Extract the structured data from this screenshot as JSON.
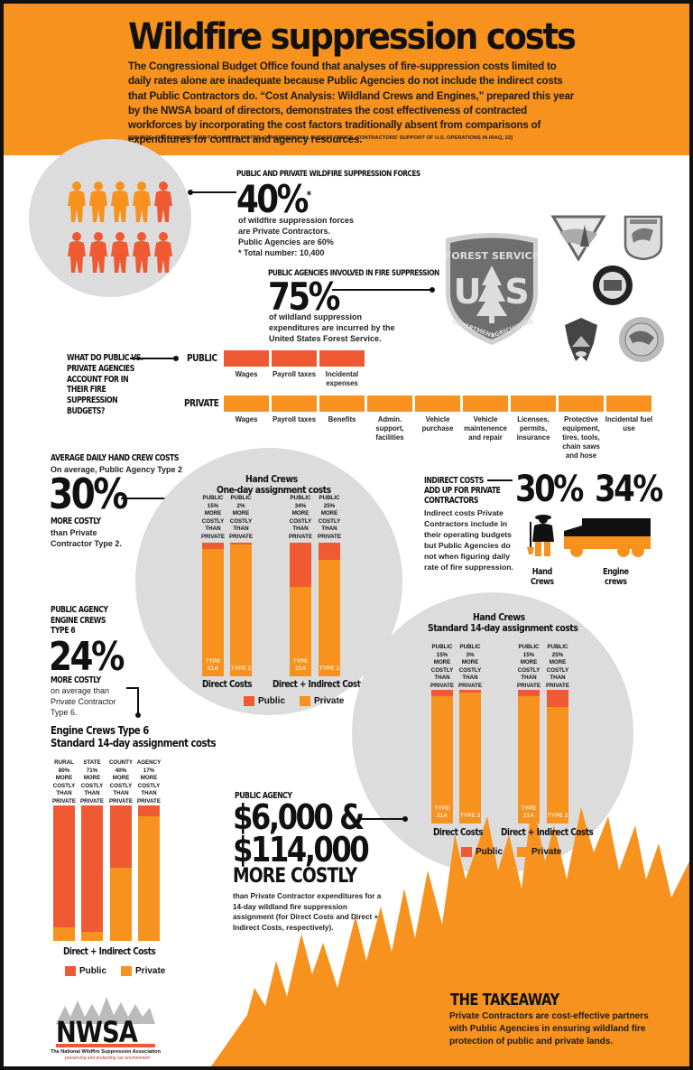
{
  "header": {
    "title": "Wildfire suppression costs",
    "intro": "The Congressional Budget Office found that analyses of fire-suppression costs limited to daily rates alone are inadequate because Public Agencies do not include the indirect costs that Public Contractors do. “Cost Analysis: Wildland Crews and Engines,” prepared this year by the NWSA board of directors, demonstrates the cost effectiveness of contracted workforces by incorporating the cost factors traditionally absent from comparisons of expenditures for contract and agency resources.",
    "source": "[SOURCE: THE CONGRESS OF THE UNITED STATES, CONGRESSIONAL BUDGET OFFICE, CONTRACTORS' SUPPORT OF U.S. OPERATIONS IN IRAQ, 22]"
  },
  "colors": {
    "orange": "#f7921e",
    "red_orange": "#f05a32",
    "gray_circle": "#dcdcdd",
    "black": "#111111"
  },
  "forces": {
    "heading": "PUBLIC AND PRIVATE WILDFIRE SUPPRESSION FORCES",
    "value": "40%",
    "asterisk": "*",
    "line1": "of wildfire suppression forces",
    "line2": "are Private Contractors.",
    "line3": "Public Agencies are 60%",
    "line4": "* Total number: 10,400",
    "icon": "firefighter-icon",
    "people": [
      {
        "type": "private"
      },
      {
        "type": "private"
      },
      {
        "type": "private"
      },
      {
        "type": "private"
      },
      {
        "type": "public"
      },
      {
        "type": "public"
      },
      {
        "type": "public"
      },
      {
        "type": "public"
      },
      {
        "type": "public"
      },
      {
        "type": "public"
      }
    ]
  },
  "agencies": {
    "heading": "PUBLIC AGENCIES INVOLVED IN FIRE SUPPRESSION",
    "value": "75%",
    "line1": "of wildland suppression",
    "line2": "expenditures are incurred by the",
    "line3": "United States Forest Service.",
    "badge_top": "FOREST SERVICE",
    "badge_u": "U",
    "badge_s": "S",
    "badge_bottom_left": "DEPARTMENT",
    "badge_bottom_right": "AGRICULTURE",
    "logos": [
      "blm-logo",
      "usfws-logo",
      "oregon-forestry-logo",
      "nps-logo",
      "bia-logo"
    ]
  },
  "budgets": {
    "question": "WHAT DO PUBLIC VS. PRIVATE AGENCIES ACCOUNT FOR IN THEIR FIRE SUPPRESSION BUDGETS?",
    "public_label": "PUBLIC",
    "private_label": "PRIVATE",
    "public_items": [
      "Wages",
      "Payroll taxes",
      "Incidental expenses"
    ],
    "private_items": [
      "Wages",
      "Payroll taxes",
      "Benefits",
      "Admin. support, facilities",
      "Vehicle purchase",
      "Vehicle maintenence and repair",
      "Licenses, permits, insurance",
      "Protective equipment, tires, tools, chain saws and hose",
      "Incidental fuel use"
    ]
  },
  "hand_daily": {
    "heading": "AVERAGE DAILY HAND CREW COSTS",
    "sub": "On average, Public Agency Type 2",
    "value": "30%",
    "more": "MORE COSTLY",
    "line1": "than Private",
    "line2": "Contractor Type 2."
  },
  "indirect": {
    "heading1": "INDIRECT COSTS",
    "heading2": "ADD UP FOR PRIVATE",
    "heading3": "CONTRACTORS",
    "body": "Indirect costs Private Contractors include in their operating budgets but Public Agencies do not when figuring daily rate of fire suppression.",
    "hand_value": "30%",
    "engine_value": "34%",
    "hand_label1": "Hand",
    "hand_label2": "Crews",
    "engine_label1": "Engine",
    "engine_label2": "crews"
  },
  "engine_type6": {
    "heading1": "PUBLIC AGENCY",
    "heading2": "ENGINE CREWS",
    "heading3": "TYPE 6",
    "value": "24%",
    "more": "MORE COSTLY",
    "line1": "on average than",
    "line2": "Private Contractor",
    "line3": "Type  6."
  },
  "public_agency_cost": {
    "heading": "PUBLIC AGENCY",
    "value1": "$6,000 &",
    "value2": "$114,000",
    "more": "MORE COSTLY",
    "body": "than Private Contractor expenditures for a 14-day wildland fire suppression assignment (for Direct Costs and Direct + Indirect Costs, respectively)."
  },
  "takeaway": {
    "heading": "THE TAKEAWAY",
    "body": "Private Contractors are cost-effective partners with Public Agencies in ensuring wildland fire protection of public and private lands."
  },
  "logo": {
    "name": "NWSA",
    "full": "The National Wildfire Suppression Association",
    "tagline": "preserving and protecting our environment"
  },
  "legend": {
    "public": "Public",
    "private": "Private"
  },
  "chart_data": [
    {
      "type": "bar",
      "title": "Hand Crews",
      "subtitle": "One-day assignment costs",
      "groups": [
        "Direct Costs",
        "Direct + Indirect Costs"
      ],
      "categories": [
        "TYPE 21A",
        "TYPE 2",
        "TYPE 21A",
        "TYPE 2"
      ],
      "annotations": [
        "PUBLIC 15% MORE COSTLY THAN PRIVATE",
        "PUBLIC 2% MORE COSTLY THAN PRIVATE",
        "PUBLIC 34% MORE COSTLY THAN PRIVATE",
        "PUBLIC 25% MORE COSTLY THAN PRIVATE"
      ],
      "series": [
        {
          "name": "Public",
          "values": [
            115,
            102,
            134,
            125
          ]
        },
        {
          "name": "Private",
          "values": [
            100,
            100,
            100,
            100
          ]
        }
      ],
      "legend": [
        "Public",
        "Private"
      ],
      "stacked_overlay": true
    },
    {
      "type": "bar",
      "title": "Hand Crews",
      "subtitle": "Standard 14-day assignment costs",
      "groups": [
        "Direct Costs",
        "Direct + Indirect Costs"
      ],
      "categories": [
        "TYPE 21A",
        "TYPE 2",
        "TYPE 21A",
        "TYPE 2"
      ],
      "annotations": [
        "PUBLIC 15% MORE COSTLY THAN PRIVATE",
        "PUBLIC 3% MORE COSTLY THAN PRIVATE",
        "PUBLIC 15% MORE COSTLY THAN PRIVATE",
        "PUBLIC 25% MORE COSTLY THAN PRIVATE"
      ],
      "series": [
        {
          "name": "Public",
          "values": [
            115,
            103,
            115,
            125
          ]
        },
        {
          "name": "Private",
          "values": [
            100,
            100,
            100,
            100
          ]
        }
      ],
      "legend": [
        "Public",
        "Private"
      ]
    },
    {
      "type": "bar",
      "title": "Engine Crews Type 6",
      "subtitle": "Standard 14-day assignment costs",
      "groups": [
        "Direct + Indirect Costs"
      ],
      "categories": [
        "RURAL",
        "STATE",
        "COUNTY",
        "AGENCY"
      ],
      "annotations": [
        "RURAL 80% MORE COSTLY THAN PRIVATE",
        "STATE 71% MORE COSTLY THAN PRIVATE",
        "COUNTY 40% MORE COSTLY THAN PRIVATE",
        "AGENCY 17% MORE COSTLY THAN PRIVATE"
      ],
      "series": [
        {
          "name": "Public",
          "values": [
            180,
            171,
            140,
            117
          ]
        },
        {
          "name": "Private",
          "values": [
            100,
            100,
            100,
            100
          ]
        }
      ],
      "legend": [
        "Public",
        "Private"
      ]
    }
  ]
}
